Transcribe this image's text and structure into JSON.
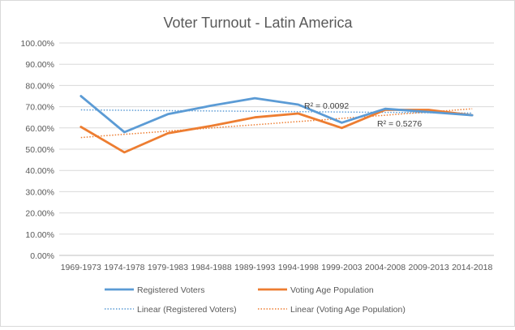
{
  "chart_data": {
    "type": "line",
    "title": "Voter Turnout - Latin America",
    "categories": [
      "1969-1973",
      "1974-1978",
      "1979-1983",
      "1984-1988",
      "1989-1993",
      "1994-1998",
      "1999-2003",
      "2004-2008",
      "2009-2013",
      "2014-2018"
    ],
    "ylim": [
      0,
      100
    ],
    "y_ticks": [
      "0.00%",
      "10.00%",
      "20.00%",
      "30.00%",
      "40.00%",
      "50.00%",
      "60.00%",
      "70.00%",
      "80.00%",
      "90.00%",
      "100.00%"
    ],
    "grid": true,
    "legend_position": "bottom",
    "series": [
      {
        "name": "Registered Voters",
        "color": "#5b9bd5",
        "values": [
          75.0,
          58.0,
          66.5,
          70.5,
          74.0,
          71.0,
          62.5,
          69.0,
          67.5,
          66.0
        ],
        "trendline": {
          "name": "Linear (Registered Voters)",
          "r2_label": "R² = 0.0092",
          "start": 68.5,
          "end": 67.0
        }
      },
      {
        "name": "Voting Age Population",
        "color": "#ed7d31",
        "values": [
          60.5,
          48.5,
          57.5,
          61.0,
          65.0,
          66.8,
          60.0,
          68.5,
          68.5,
          66.0
        ],
        "trendline": {
          "name": "Linear (Voting Age Population)",
          "r2_label": "R² = 0.5276",
          "start": 55.5,
          "end": 69.0
        }
      }
    ]
  }
}
